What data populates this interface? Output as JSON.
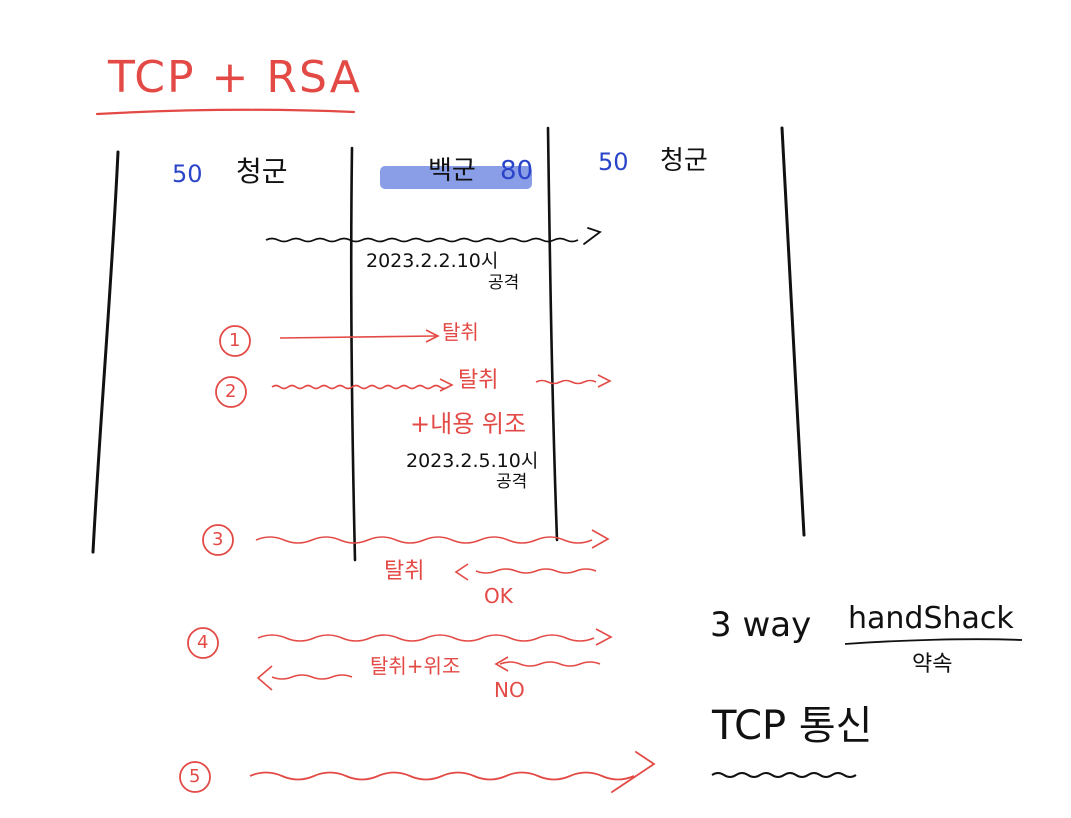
{
  "title": "TCP + RSA",
  "colors": {
    "ink": "#111111",
    "red": "#e34a46",
    "blue": "#2a45c9",
    "highlight": "#8a9ee8"
  },
  "actors": {
    "left": {
      "number": "50",
      "label": "청군"
    },
    "middle": {
      "label": "백군",
      "number": "80"
    },
    "right": {
      "number": "50",
      "label": "청군"
    }
  },
  "top_message": {
    "date": "2023.2.2.10시",
    "word": "공격"
  },
  "steps": [
    {
      "num": "1",
      "label": "탈취"
    },
    {
      "num": "2",
      "label": "탈취",
      "note": "+내용 위조",
      "date": "2023.2.5.10시",
      "word": "공격"
    },
    {
      "num": "3",
      "reply_label": "탈취",
      "reply_word": "OK"
    },
    {
      "num": "4",
      "reply_label": "탈취+위조",
      "reply_word": "NO"
    },
    {
      "num": "5"
    }
  ],
  "handshake": {
    "prefix": "3 way",
    "word": "handShack",
    "sub": "약속"
  },
  "tcp_comm": {
    "label": "TCP 통신"
  }
}
